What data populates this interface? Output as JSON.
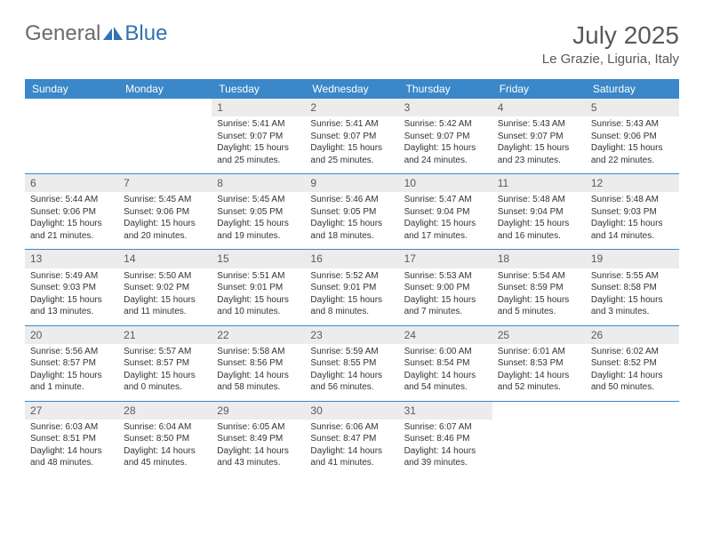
{
  "brand": {
    "word1": "General",
    "word2": "Blue",
    "word1_color": "#6a6a6a",
    "word2_color": "#2f72b5"
  },
  "title": "July 2025",
  "location": "Le Grazie, Liguria, Italy",
  "accent_color": "#3a87c9",
  "daynum_bg": "#ececec",
  "background": "#ffffff",
  "text_color": "#333333",
  "header_text_color": "#595959",
  "week_header_fontsize": 12,
  "cell_fontsize": 10,
  "days_of_week": [
    "Sunday",
    "Monday",
    "Tuesday",
    "Wednesday",
    "Thursday",
    "Friday",
    "Saturday"
  ],
  "weeks": [
    [
      null,
      null,
      {
        "n": "1",
        "sunrise": "5:41 AM",
        "sunset": "9:07 PM",
        "daylight": "15 hours and 25 minutes."
      },
      {
        "n": "2",
        "sunrise": "5:41 AM",
        "sunset": "9:07 PM",
        "daylight": "15 hours and 25 minutes."
      },
      {
        "n": "3",
        "sunrise": "5:42 AM",
        "sunset": "9:07 PM",
        "daylight": "15 hours and 24 minutes."
      },
      {
        "n": "4",
        "sunrise": "5:43 AM",
        "sunset": "9:07 PM",
        "daylight": "15 hours and 23 minutes."
      },
      {
        "n": "5",
        "sunrise": "5:43 AM",
        "sunset": "9:06 PM",
        "daylight": "15 hours and 22 minutes."
      }
    ],
    [
      {
        "n": "6",
        "sunrise": "5:44 AM",
        "sunset": "9:06 PM",
        "daylight": "15 hours and 21 minutes."
      },
      {
        "n": "7",
        "sunrise": "5:45 AM",
        "sunset": "9:06 PM",
        "daylight": "15 hours and 20 minutes."
      },
      {
        "n": "8",
        "sunrise": "5:45 AM",
        "sunset": "9:05 PM",
        "daylight": "15 hours and 19 minutes."
      },
      {
        "n": "9",
        "sunrise": "5:46 AM",
        "sunset": "9:05 PM",
        "daylight": "15 hours and 18 minutes."
      },
      {
        "n": "10",
        "sunrise": "5:47 AM",
        "sunset": "9:04 PM",
        "daylight": "15 hours and 17 minutes."
      },
      {
        "n": "11",
        "sunrise": "5:48 AM",
        "sunset": "9:04 PM",
        "daylight": "15 hours and 16 minutes."
      },
      {
        "n": "12",
        "sunrise": "5:48 AM",
        "sunset": "9:03 PM",
        "daylight": "15 hours and 14 minutes."
      }
    ],
    [
      {
        "n": "13",
        "sunrise": "5:49 AM",
        "sunset": "9:03 PM",
        "daylight": "15 hours and 13 minutes."
      },
      {
        "n": "14",
        "sunrise": "5:50 AM",
        "sunset": "9:02 PM",
        "daylight": "15 hours and 11 minutes."
      },
      {
        "n": "15",
        "sunrise": "5:51 AM",
        "sunset": "9:01 PM",
        "daylight": "15 hours and 10 minutes."
      },
      {
        "n": "16",
        "sunrise": "5:52 AM",
        "sunset": "9:01 PM",
        "daylight": "15 hours and 8 minutes."
      },
      {
        "n": "17",
        "sunrise": "5:53 AM",
        "sunset": "9:00 PM",
        "daylight": "15 hours and 7 minutes."
      },
      {
        "n": "18",
        "sunrise": "5:54 AM",
        "sunset": "8:59 PM",
        "daylight": "15 hours and 5 minutes."
      },
      {
        "n": "19",
        "sunrise": "5:55 AM",
        "sunset": "8:58 PM",
        "daylight": "15 hours and 3 minutes."
      }
    ],
    [
      {
        "n": "20",
        "sunrise": "5:56 AM",
        "sunset": "8:57 PM",
        "daylight": "15 hours and 1 minute."
      },
      {
        "n": "21",
        "sunrise": "5:57 AM",
        "sunset": "8:57 PM",
        "daylight": "15 hours and 0 minutes."
      },
      {
        "n": "22",
        "sunrise": "5:58 AM",
        "sunset": "8:56 PM",
        "daylight": "14 hours and 58 minutes."
      },
      {
        "n": "23",
        "sunrise": "5:59 AM",
        "sunset": "8:55 PM",
        "daylight": "14 hours and 56 minutes."
      },
      {
        "n": "24",
        "sunrise": "6:00 AM",
        "sunset": "8:54 PM",
        "daylight": "14 hours and 54 minutes."
      },
      {
        "n": "25",
        "sunrise": "6:01 AM",
        "sunset": "8:53 PM",
        "daylight": "14 hours and 52 minutes."
      },
      {
        "n": "26",
        "sunrise": "6:02 AM",
        "sunset": "8:52 PM",
        "daylight": "14 hours and 50 minutes."
      }
    ],
    [
      {
        "n": "27",
        "sunrise": "6:03 AM",
        "sunset": "8:51 PM",
        "daylight": "14 hours and 48 minutes."
      },
      {
        "n": "28",
        "sunrise": "6:04 AM",
        "sunset": "8:50 PM",
        "daylight": "14 hours and 45 minutes."
      },
      {
        "n": "29",
        "sunrise": "6:05 AM",
        "sunset": "8:49 PM",
        "daylight": "14 hours and 43 minutes."
      },
      {
        "n": "30",
        "sunrise": "6:06 AM",
        "sunset": "8:47 PM",
        "daylight": "14 hours and 41 minutes."
      },
      {
        "n": "31",
        "sunrise": "6:07 AM",
        "sunset": "8:46 PM",
        "daylight": "14 hours and 39 minutes."
      },
      null,
      null
    ]
  ],
  "labels": {
    "sunrise": "Sunrise:",
    "sunset": "Sunset:",
    "daylight": "Daylight:"
  }
}
